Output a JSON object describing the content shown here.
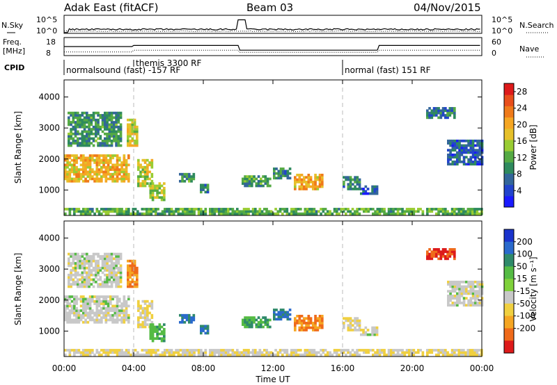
{
  "header": {
    "station": "Adak East (fitACF)",
    "beam": "Beam 03",
    "date": "04/Nov/2015"
  },
  "panel_labels": {
    "nsky": "N.Sky",
    "nsearch": "N.Search",
    "freq": "Freq.",
    "freq_unit": "[MHz]",
    "nave": "Nave",
    "cpid": "CPID",
    "nsky_ticks": [
      "10^5",
      "10^0"
    ],
    "nsearch_ticks": [
      "10^5",
      "10^0"
    ],
    "freq_ticks": [
      "18",
      "8"
    ],
    "nave_ticks": [
      "60",
      "0"
    ]
  },
  "cpid_modes": [
    {
      "label": "normalsound (fast) -157 RF",
      "start": 0,
      "end": 16
    },
    {
      "label": "themis 3300 RF",
      "start": 4,
      "end": 4
    },
    {
      "label": "normal (fast) 151 RF",
      "start": 16,
      "end": 24
    }
  ],
  "axes": {
    "xlabel": "Time UT",
    "xticks": [
      "00:00",
      "04:00",
      "08:00",
      "12:00",
      "16:00",
      "20:00",
      "00:00"
    ],
    "xlim": [
      0,
      24
    ],
    "ylabel": "Slant Range [km]",
    "ylim": [
      180,
      4550
    ],
    "yticks": [
      "1000",
      "2000",
      "3000",
      "4000"
    ]
  },
  "power_colorbar": {
    "label": "Power [dB]",
    "ticks": [
      "4",
      "8",
      "12",
      "16",
      "20",
      "24",
      "28"
    ],
    "range": [
      0,
      30
    ],
    "colors": [
      "#1a1aff",
      "#2244cc",
      "#33669a",
      "#2f8a5e",
      "#55aa44",
      "#99cc33",
      "#e6c02a",
      "#f5a623",
      "#ef7a1a",
      "#e84e1b",
      "#dd1a1a"
    ]
  },
  "velocity_colorbar": {
    "label": "Velocity [m s⁻¹]",
    "ticks": [
      "200",
      "100",
      "50",
      "15",
      "-15",
      "-50",
      "-100",
      "-200"
    ],
    "colors": [
      "#1a33cc",
      "#2a6acc",
      "#2f8a6a",
      "#55bb44",
      "#7fd13b",
      "#c8c8c8",
      "#f0d040",
      "#f5a623",
      "#ef6a1a",
      "#dd1a1a"
    ]
  },
  "chart_data": {
    "type": "heatmap",
    "panels": [
      "power",
      "velocity"
    ],
    "time_range_hours": [
      0,
      24
    ],
    "regions": [
      {
        "t0": 0.0,
        "t1": 3.7,
        "r0": 1250,
        "r1": 2150,
        "power": 19,
        "velocity": 0
      },
      {
        "t0": 0.2,
        "t1": 3.2,
        "r0": 2400,
        "r1": 3500,
        "power": 10,
        "velocity": 0
      },
      {
        "t0": 3.6,
        "t1": 4.2,
        "r0": 2400,
        "r1": 3300,
        "power": 17,
        "velocity": -100
      },
      {
        "t0": 4.2,
        "t1": 5.1,
        "r0": 1100,
        "r1": 2000,
        "power": 16,
        "velocity": -15
      },
      {
        "t0": 4.9,
        "t1": 5.7,
        "r0": 650,
        "r1": 1250,
        "power": 15,
        "velocity": 40
      },
      {
        "t0": 6.6,
        "t1": 7.4,
        "r0": 1250,
        "r1": 1500,
        "power": 10,
        "velocity": 100
      },
      {
        "t0": 7.8,
        "t1": 8.3,
        "r0": 900,
        "r1": 1150,
        "power": 8,
        "velocity": 100
      },
      {
        "t0": 10.2,
        "t1": 11.8,
        "r0": 1100,
        "r1": 1450,
        "power": 11,
        "velocity": 50
      },
      {
        "t0": 12.0,
        "t1": 13.0,
        "r0": 1350,
        "r1": 1700,
        "power": 9,
        "velocity": 100
      },
      {
        "t0": 13.2,
        "t1": 14.8,
        "r0": 1000,
        "r1": 1500,
        "power": 20,
        "velocity": -100
      },
      {
        "t0": 16.0,
        "t1": 17.0,
        "r0": 1000,
        "r1": 1450,
        "power": 9,
        "velocity": -15
      },
      {
        "t0": 17.0,
        "t1": 18.0,
        "r0": 850,
        "r1": 1100,
        "power": 6,
        "velocity": 0
      },
      {
        "t0": 20.8,
        "t1": 22.4,
        "r0": 3300,
        "r1": 3650,
        "power": 8,
        "velocity": -200
      },
      {
        "t0": 22.0,
        "t1": 24.0,
        "r0": 1800,
        "r1": 2600,
        "power": 6,
        "velocity": 0
      },
      {
        "t0": 0.0,
        "t1": 24.0,
        "r0": 200,
        "r1": 380,
        "power": 12,
        "velocity": -15
      }
    ]
  }
}
